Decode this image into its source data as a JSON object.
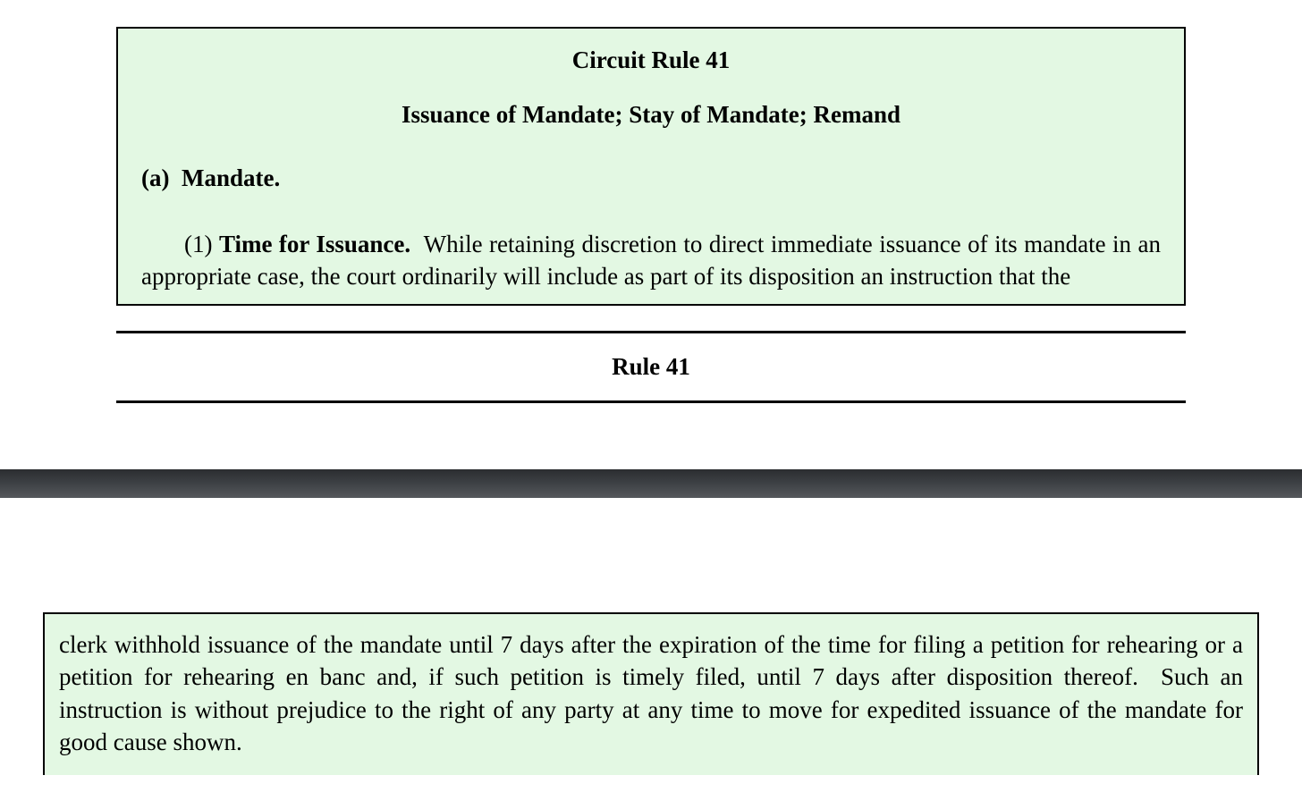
{
  "colors": {
    "box_background": "#e3f8e3",
    "box_border": "#000000",
    "divider_top": "#2b2d30",
    "divider_bottom": "#55585c",
    "text": "#000000",
    "page_background": "#ffffff"
  },
  "typography": {
    "family": "Times New Roman",
    "heading_size_pt": 20,
    "body_size_pt": 20,
    "heading_weight": "bold"
  },
  "rule": {
    "number": "Circuit Rule 41",
    "title": "Issuance of Mandate; Stay of Mandate; Remand",
    "section_a": {
      "label": "(a)  Mandate.",
      "sub1": {
        "num": "(1)",
        "heading": "Time for Issuance.",
        "text_part1": "While retaining discretion to direct immediate issuance of its mandate in an appropriate case, the court ordinarily will include as part of its disposition an instruction that the",
        "text_part2": "clerk withhold issuance of the mandate until 7 days after the expiration of the time for filing a petition for rehearing or a petition for rehearing en banc and, if such petition is timely filed, until 7 days after disposition thereof.  Such an instruction is without prejudice to the right of any party at any time to move for expedited issuance of the mandate for good cause shown."
      }
    }
  },
  "footer": {
    "label": "Rule 41"
  }
}
